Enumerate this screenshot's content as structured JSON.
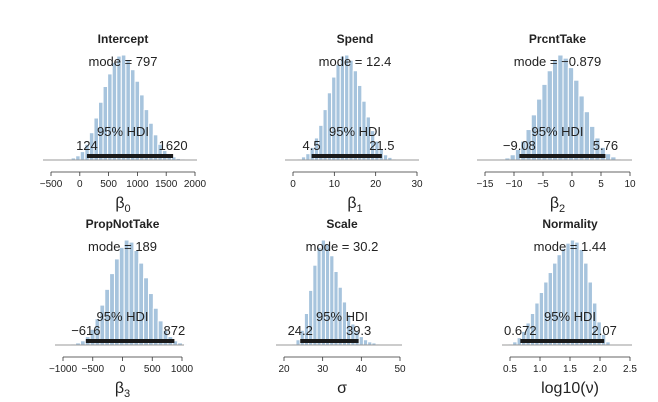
{
  "colors": {
    "bar_fill": "#a7c4dd",
    "bar_stroke": "#ffffff",
    "hdi_bar": "#1a1a1a",
    "axis": "#333333"
  },
  "chart_data": [
    {
      "type": "histogram",
      "title": "Intercept",
      "mode_text": "mode = 797",
      "hdi_label": "95% HDI",
      "hdi_low_text": "124",
      "hdi_high_text": "1620",
      "hdi": [
        124,
        1620
      ],
      "xlabel_main": "β",
      "xlabel_sub": "0",
      "xlim": [
        -500,
        2000
      ],
      "ticks": [
        -500,
        0,
        500,
        1000,
        1500,
        2000
      ],
      "tick_labels": [
        "−500",
        "0",
        "500",
        "1000",
        "1500",
        "2000"
      ],
      "bins": [
        -230,
        1830
      ],
      "density": [
        0.01,
        0.02,
        0.04,
        0.08,
        0.15,
        0.26,
        0.4,
        0.55,
        0.7,
        0.82,
        0.93,
        0.99,
        1.0,
        0.95,
        0.86,
        0.75,
        0.62,
        0.48,
        0.35,
        0.24,
        0.15,
        0.09,
        0.05,
        0.03,
        0.015,
        0.01
      ]
    },
    {
      "type": "histogram",
      "title": "Spend",
      "mode_text": "mode = 12.4",
      "hdi_label": "95% HDI",
      "hdi_low_text": "4.5",
      "hdi_high_text": "21.5",
      "hdi": [
        4.5,
        21.5
      ],
      "xlabel_main": "β",
      "xlabel_sub": "1",
      "xlim": [
        0,
        30
      ],
      "ticks": [
        0,
        10,
        20,
        30
      ],
      "tick_labels": [
        "0",
        "10",
        "20",
        "30"
      ],
      "bins": [
        1,
        25
      ],
      "density": [
        0.01,
        0.03,
        0.06,
        0.12,
        0.21,
        0.33,
        0.48,
        0.64,
        0.79,
        0.91,
        0.99,
        1.0,
        0.95,
        0.85,
        0.71,
        0.56,
        0.41,
        0.28,
        0.18,
        0.1,
        0.05,
        0.025,
        0.01
      ]
    },
    {
      "type": "histogram",
      "title": "PrcntTake",
      "mode_text": "mode = −0.879",
      "hdi_label": "95% HDI",
      "hdi_low_text": "−9.08",
      "hdi_high_text": "5.76",
      "hdi": [
        -9.08,
        5.76
      ],
      "xlabel_main": "β",
      "xlabel_sub": "2",
      "xlim": [
        -15,
        10
      ],
      "ticks": [
        -15,
        -10,
        -5,
        0,
        5,
        10
      ],
      "tick_labels": [
        "−15",
        "−10",
        "−5",
        "0",
        "5",
        "10"
      ],
      "bins": [
        -12.5,
        8.5
      ],
      "density": [
        0.01,
        0.02,
        0.05,
        0.1,
        0.18,
        0.29,
        0.43,
        0.58,
        0.72,
        0.85,
        0.95,
        1.0,
        0.97,
        0.88,
        0.76,
        0.61,
        0.46,
        0.32,
        0.21,
        0.12,
        0.06,
        0.03,
        0.01
      ]
    },
    {
      "type": "histogram",
      "title": "PropNotTake",
      "mode_text": "mode = 189",
      "hdi_label": "95% HDI",
      "hdi_low_text": "−616",
      "hdi_high_text": "872",
      "hdi": [
        -616,
        872
      ],
      "xlabel_main": "β",
      "xlabel_sub": "3",
      "xlim": [
        -1000,
        1000
      ],
      "ticks": [
        -1000,
        -500,
        0,
        500,
        1000
      ],
      "tick_labels": [
        "−1000",
        "−500",
        "0",
        "500",
        "1000"
      ],
      "bins": [
        -870,
        1090
      ],
      "density": [
        0.01,
        0.02,
        0.04,
        0.08,
        0.15,
        0.25,
        0.38,
        0.53,
        0.68,
        0.82,
        0.93,
        1.0,
        0.98,
        0.9,
        0.78,
        0.64,
        0.49,
        0.35,
        0.23,
        0.14,
        0.08,
        0.04,
        0.02,
        0.01
      ]
    },
    {
      "type": "histogram",
      "title": "Scale",
      "mode_text": "mode = 30.2",
      "hdi_label": "95% HDI",
      "hdi_low_text": "24.2",
      "hdi_high_text": "39.3",
      "hdi": [
        24.2,
        39.3
      ],
      "xlabel_main": "σ",
      "xlabel_sub": "",
      "xlim": [
        20,
        50
      ],
      "ticks": [
        20,
        30,
        40,
        50
      ],
      "tick_labels": [
        "20",
        "30",
        "40",
        "50"
      ],
      "bins": [
        22,
        46
      ],
      "density": [
        0.01,
        0.05,
        0.14,
        0.3,
        0.52,
        0.76,
        0.93,
        1.0,
        0.96,
        0.85,
        0.7,
        0.55,
        0.41,
        0.29,
        0.2,
        0.13,
        0.08,
        0.05,
        0.03,
        0.02,
        0.01,
        0.008
      ]
    },
    {
      "type": "histogram",
      "title": "Normality",
      "mode_text": "mode = 1.44",
      "hdi_label": "95% HDI",
      "hdi_low_text": "0.672",
      "hdi_high_text": "2.07",
      "hdi": [
        0.672,
        2.07
      ],
      "xlabel_main": "log10(ν)",
      "xlabel_sub": "",
      "xlim": [
        0.5,
        2.5
      ],
      "ticks": [
        0.5,
        1.0,
        1.5,
        2.0,
        2.5
      ],
      "tick_labels": [
        "0.5",
        "1.0",
        "1.5",
        "2.0",
        "2.5"
      ],
      "bins": [
        0.47,
        2.17
      ],
      "density": [
        0.01,
        0.03,
        0.07,
        0.13,
        0.21,
        0.3,
        0.4,
        0.5,
        0.6,
        0.69,
        0.78,
        0.86,
        0.92,
        0.97,
        1.0,
        0.98,
        0.91,
        0.78,
        0.6,
        0.4,
        0.22,
        0.1,
        0.03
      ]
    }
  ]
}
